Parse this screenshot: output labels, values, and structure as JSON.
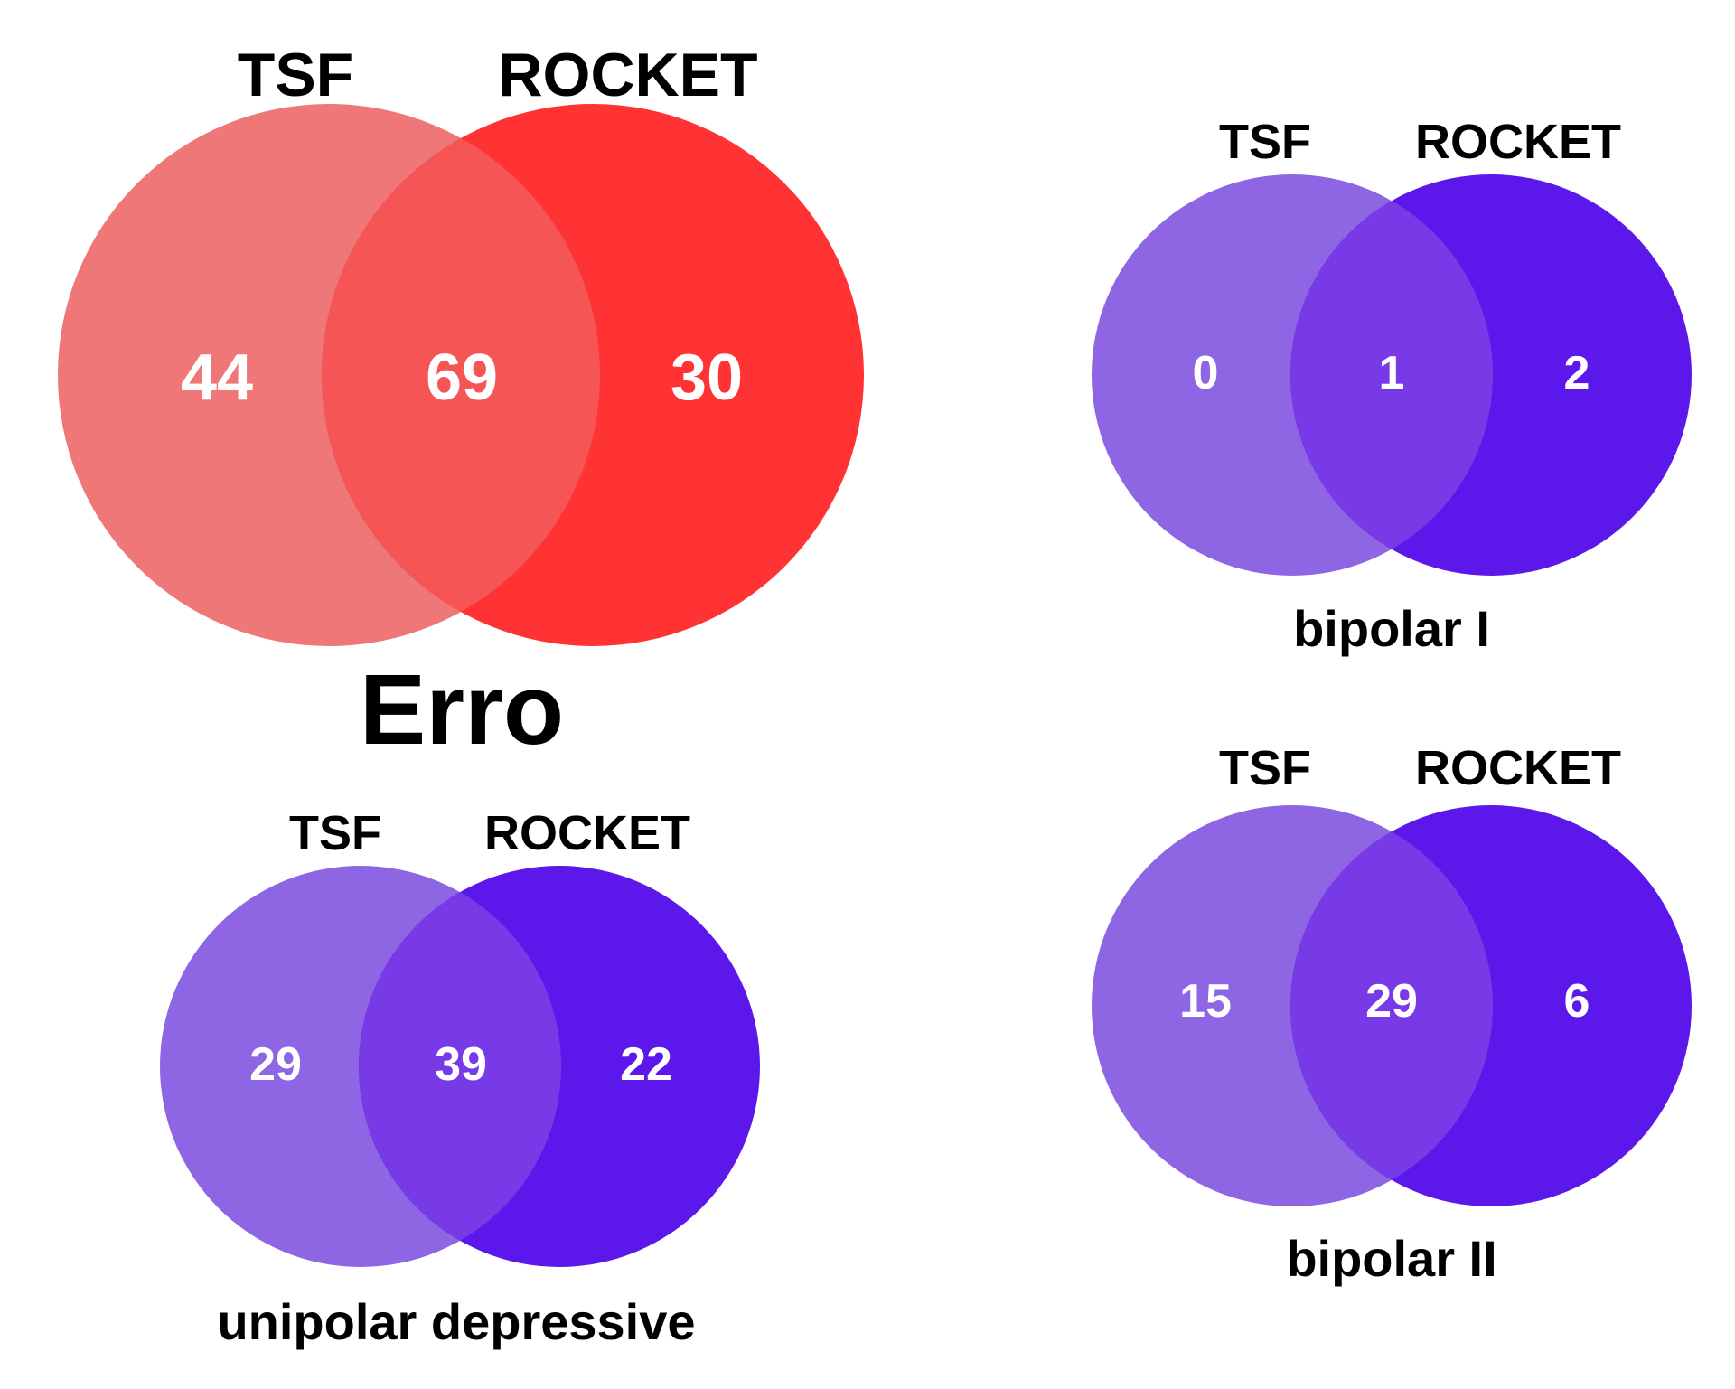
{
  "diagrams": [
    {
      "set_a": "TSF",
      "set_b": "ROCKET",
      "only_a": "44",
      "both": "69",
      "only_b": "30",
      "caption": "Erro",
      "colors": {
        "a": "#ef7777",
        "b": "#ff3333",
        "overlap": "#f55555"
      }
    },
    {
      "set_a": "TSF",
      "set_b": "ROCKET",
      "only_a": "0",
      "both": "1",
      "only_b": "2",
      "caption": "bipolar I",
      "colors": {
        "a": "#8e66e3",
        "b": "#5c18ea",
        "overlap": "#773ae6"
      }
    },
    {
      "set_a": "TSF",
      "set_b": "ROCKET",
      "only_a": "29",
      "both": "39",
      "only_b": "22",
      "caption": "unipolar depressive",
      "colors": {
        "a": "#8e66e3",
        "b": "#5c18ea",
        "overlap": "#773ae6"
      }
    },
    {
      "set_a": "TSF",
      "set_b": "ROCKET",
      "only_a": "15",
      "both": "29",
      "only_b": "6",
      "caption": "bipolar II",
      "colors": {
        "a": "#8e66e3",
        "b": "#5c18ea",
        "overlap": "#773ae6"
      }
    }
  ]
}
